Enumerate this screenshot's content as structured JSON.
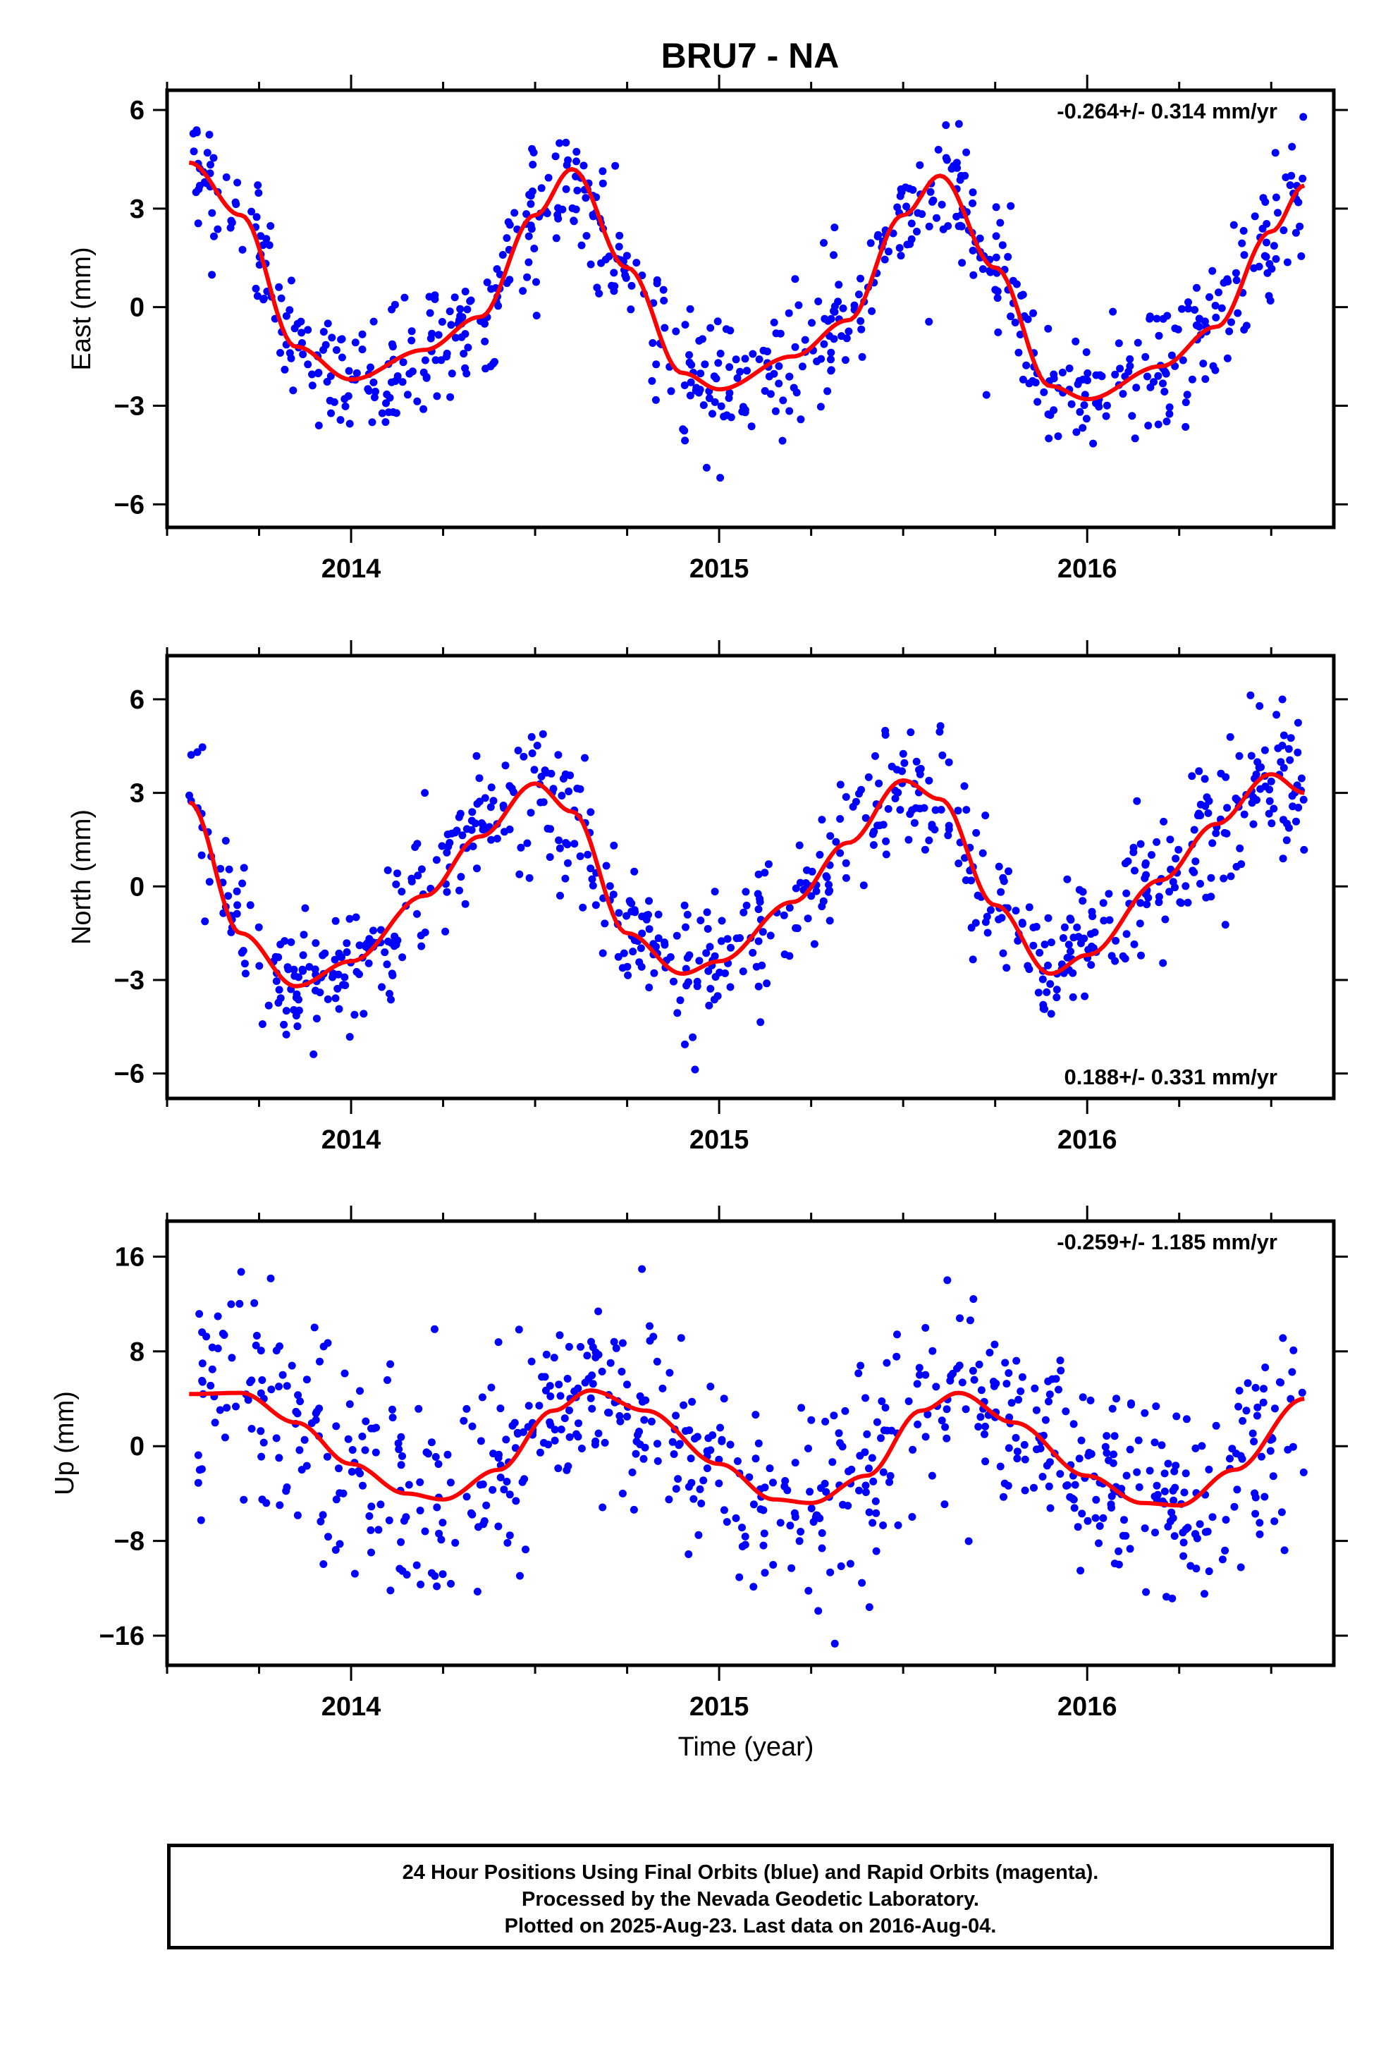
{
  "title": "BRU7 - NA",
  "xlabel": "Time (year)",
  "x_ticks": [
    "2014",
    "2015",
    "2016"
  ],
  "caption": [
    "24 Hour Positions Using Final Orbits (blue) and Rapid Orbits (magenta).",
    "Processed by the Nevada Geodetic Laboratory.",
    "Plotted on 2025-Aug-23. Last data on 2016-Aug-04."
  ],
  "colors": {
    "points": "#0000ff",
    "fit": "#ff0000",
    "axes": "#000000"
  },
  "chart_data": [
    {
      "type": "scatter",
      "panel": "east",
      "ylabel": "East (mm)",
      "rate_label": "-0.264+/- 0.314 mm/yr",
      "rate_position": "top-right",
      "xlim": [
        2013.5,
        2016.67
      ],
      "ylim": [
        -6.7,
        6.6
      ],
      "y_ticks": [
        6,
        3,
        0,
        -3,
        -6
      ],
      "y_tick_labels": [
        "6",
        "3",
        "0",
        "−3",
        "−6"
      ],
      "fit_curve": {
        "x": [
          2013.56,
          2013.7,
          2013.85,
          2014.0,
          2014.2,
          2014.35,
          2014.5,
          2014.6,
          2014.75,
          2014.9,
          2015.0,
          2015.2,
          2015.35,
          2015.5,
          2015.6,
          2015.75,
          2015.9,
          2016.0,
          2016.2,
          2016.35,
          2016.5,
          2016.59
        ],
        "y": [
          4.4,
          2.8,
          -1.2,
          -2.2,
          -1.3,
          -0.3,
          2.8,
          4.2,
          1.2,
          -2.0,
          -2.5,
          -1.5,
          -0.4,
          2.8,
          4.0,
          1.2,
          -2.4,
          -2.8,
          -1.8,
          -0.6,
          2.3,
          3.7
        ]
      },
      "scatter_spread": 1.0
    },
    {
      "type": "scatter",
      "panel": "north",
      "ylabel": "North (mm)",
      "rate_label": "0.188+/- 0.331 mm/yr",
      "rate_position": "bottom-right",
      "xlim": [
        2013.5,
        2016.67
      ],
      "ylim": [
        -6.8,
        7.4
      ],
      "y_ticks": [
        6,
        3,
        0,
        -3,
        -6
      ],
      "y_tick_labels": [
        "6",
        "3",
        "0",
        "−3",
        "−6"
      ],
      "fit_curve": {
        "x": [
          2013.56,
          2013.7,
          2013.85,
          2014.0,
          2014.2,
          2014.35,
          2014.5,
          2014.6,
          2014.75,
          2014.9,
          2015.0,
          2015.2,
          2015.35,
          2015.5,
          2015.6,
          2015.75,
          2015.9,
          2016.0,
          2016.2,
          2016.35,
          2016.5,
          2016.59
        ],
        "y": [
          2.7,
          -1.5,
          -3.2,
          -2.4,
          -0.3,
          1.6,
          3.3,
          2.4,
          -1.5,
          -2.8,
          -2.4,
          -0.5,
          1.4,
          3.4,
          2.8,
          -0.6,
          -2.8,
          -2.2,
          0.2,
          2.0,
          3.6,
          3.0
        ]
      },
      "scatter_spread": 1.1
    },
    {
      "type": "scatter",
      "panel": "up",
      "ylabel": "Up (mm)",
      "rate_label": "-0.259+/- 1.185 mm/yr",
      "rate_position": "top-right",
      "xlim": [
        2013.5,
        2016.67
      ],
      "ylim": [
        -18.5,
        19
      ],
      "y_ticks": [
        16,
        8,
        0,
        -8,
        -16
      ],
      "y_tick_labels": [
        "16",
        "8",
        "0",
        "−8",
        "−16"
      ],
      "fit_curve": {
        "x": [
          2013.56,
          2013.7,
          2013.85,
          2014.0,
          2014.15,
          2014.25,
          2014.4,
          2014.55,
          2014.65,
          2014.8,
          2015.0,
          2015.15,
          2015.25,
          2015.4,
          2015.55,
          2015.65,
          2015.8,
          2016.0,
          2016.15,
          2016.25,
          2016.4,
          2016.59
        ],
        "y": [
          4.4,
          4.5,
          2.0,
          -1.5,
          -4.0,
          -4.5,
          -2.0,
          3.0,
          4.7,
          3.0,
          -1.5,
          -4.5,
          -4.8,
          -2.5,
          3.0,
          4.5,
          2.0,
          -2.5,
          -4.8,
          -5.0,
          -2.0,
          4.0
        ]
      },
      "scatter_spread": 4.2
    }
  ]
}
